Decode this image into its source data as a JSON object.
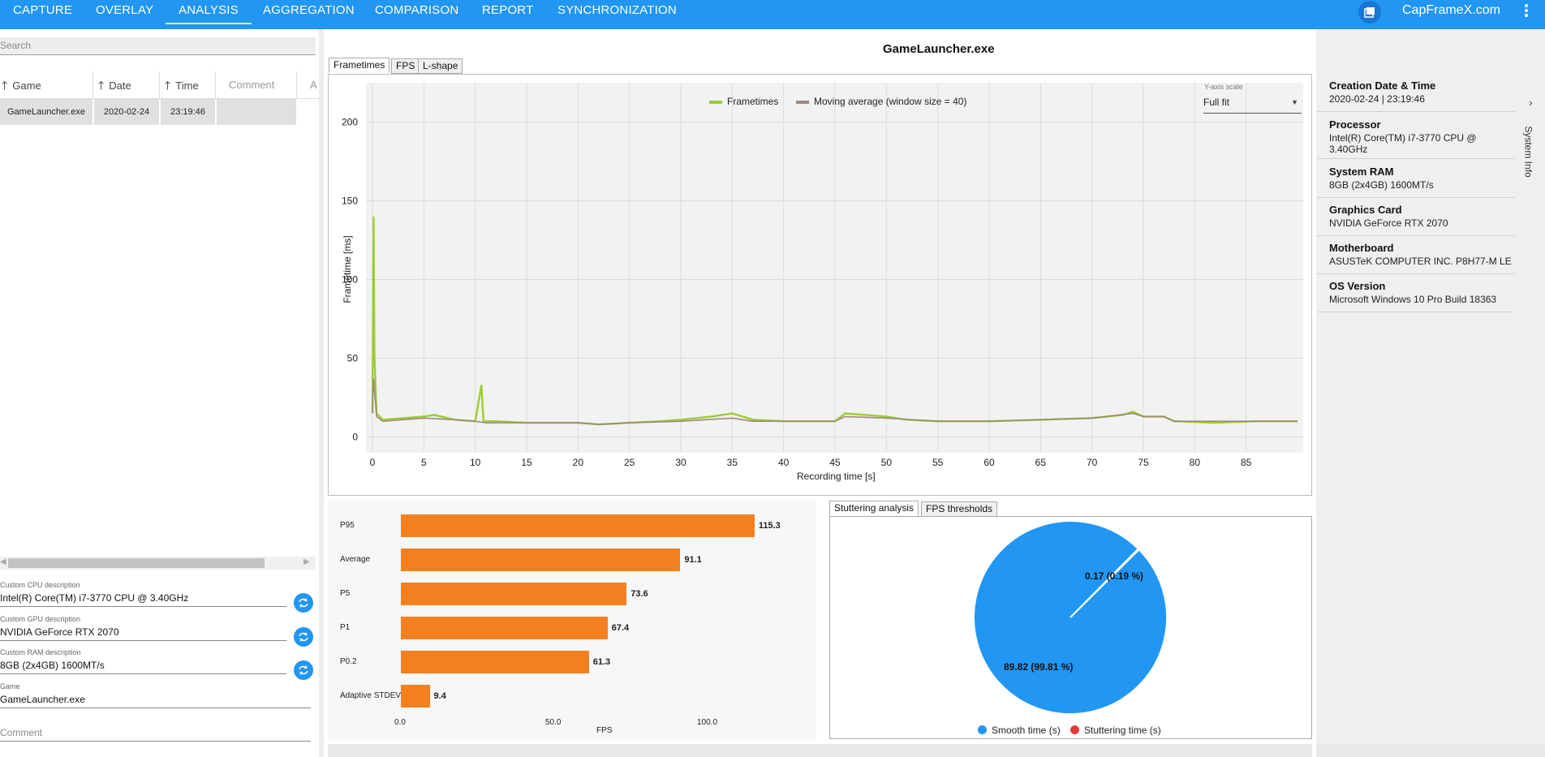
{
  "nav": {
    "tabs": [
      "CAPTURE",
      "OVERLAY",
      "ANALYSIS",
      "AGGREGATION",
      "COMPARISON",
      "REPORT",
      "SYNCHRONIZATION"
    ],
    "active": "ANALYSIS",
    "brand": "CapFrameX.com"
  },
  "sidebar": {
    "search_placeholder": "Search",
    "columns": [
      "Game",
      "Date",
      "Time",
      "Comment",
      "A"
    ],
    "rows": [
      {
        "game": "GameLauncher.exe",
        "date": "2020-02-24",
        "time": "23:19:46",
        "comment": ""
      }
    ],
    "custom_cpu_label": "Custom CPU description",
    "custom_cpu": "Intel(R) Core(TM) i7-3770 CPU @ 3.40GHz",
    "custom_gpu_label": "Custom GPU description",
    "custom_gpu": "NVIDIA GeForce RTX 2070",
    "custom_ram_label": "Custom RAM description",
    "custom_ram": "8GB (2x4GB) 1600MT/s",
    "game_label": "Game",
    "game": "GameLauncher.exe",
    "comment_placeholder": "Comment"
  },
  "main": {
    "title": "GameLauncher.exe",
    "chart_tabs": [
      "Frametimes",
      "FPS",
      "L-shape"
    ],
    "active_chart_tab": "Frametimes",
    "yaxis_scale_label": "Y-axis scale",
    "yaxis_scale_value": "Full fit",
    "stat_tabs": [
      "Stuttering analysis",
      "FPS thresholds"
    ],
    "active_stat_tab": "Stuttering analysis"
  },
  "chart_data": [
    {
      "type": "line",
      "title": "",
      "xlabel": "Recording time [s]",
      "ylabel": "Frametime [ms]",
      "xlim": [
        0,
        90
      ],
      "ylim": [
        -10,
        225
      ],
      "xticks": [
        0,
        5,
        10,
        15,
        20,
        25,
        30,
        35,
        40,
        45,
        50,
        55,
        60,
        65,
        70,
        75,
        80,
        85
      ],
      "yticks": [
        0,
        50,
        100,
        150,
        200
      ],
      "grid": true,
      "legend_position": "top",
      "series": [
        {
          "name": "Frametimes",
          "color": "#9acd32",
          "points": [
            [
              0,
              15
            ],
            [
              0.1,
              140
            ],
            [
              0.2,
              50
            ],
            [
              0.4,
              15
            ],
            [
              1,
              11
            ],
            [
              3,
              12
            ],
            [
              5,
              13
            ],
            [
              6,
              14
            ],
            [
              8,
              11
            ],
            [
              10,
              10
            ],
            [
              10.6,
              33
            ],
            [
              10.8,
              10
            ],
            [
              12,
              10
            ],
            [
              15,
              9
            ],
            [
              20,
              9
            ],
            [
              22,
              8
            ],
            [
              25,
              9
            ],
            [
              28,
              10
            ],
            [
              30,
              11
            ],
            [
              33,
              13
            ],
            [
              35,
              15
            ],
            [
              37,
              11
            ],
            [
              40,
              10
            ],
            [
              45,
              10
            ],
            [
              46,
              15
            ],
            [
              50,
              13
            ],
            [
              52,
              11
            ],
            [
              55,
              10
            ],
            [
              60,
              10
            ],
            [
              65,
              11
            ],
            [
              70,
              12
            ],
            [
              73,
              14
            ],
            [
              74,
              16
            ],
            [
              75,
              13
            ],
            [
              77,
              13
            ],
            [
              78,
              10
            ],
            [
              82,
              9
            ],
            [
              86,
              10
            ],
            [
              90,
              10
            ]
          ]
        },
        {
          "name": "Moving average (window size = 40)",
          "color": "#a1887f",
          "points": [
            [
              0,
              15
            ],
            [
              0.1,
              37
            ],
            [
              0.4,
              13
            ],
            [
              1,
              10
            ],
            [
              5,
              12
            ],
            [
              8,
              11
            ],
            [
              10,
              10
            ],
            [
              11,
              9
            ],
            [
              15,
              9
            ],
            [
              20,
              9
            ],
            [
              22,
              8
            ],
            [
              25,
              9
            ],
            [
              30,
              10
            ],
            [
              35,
              12
            ],
            [
              37,
              10
            ],
            [
              40,
              10
            ],
            [
              45,
              10
            ],
            [
              46,
              13
            ],
            [
              50,
              12
            ],
            [
              55,
              10
            ],
            [
              60,
              10
            ],
            [
              65,
              11
            ],
            [
              70,
              12
            ],
            [
              74,
              15
            ],
            [
              75,
              13
            ],
            [
              77,
              13
            ],
            [
              78,
              10
            ],
            [
              82,
              10
            ],
            [
              90,
              10
            ]
          ]
        }
      ]
    },
    {
      "type": "bar",
      "orientation": "horizontal",
      "xlabel": "FPS",
      "xlim": [
        0,
        125
      ],
      "xticks": [
        "0.0",
        "50.0",
        "100.0"
      ],
      "categories": [
        "P95",
        "Average",
        "P5",
        "P1",
        "P0.2",
        "Adaptive STDEV"
      ],
      "values": [
        115.3,
        91.1,
        73.6,
        67.4,
        61.3,
        9.4
      ],
      "color": "#f28020"
    },
    {
      "type": "pie",
      "labels": [
        "Smooth time (s)",
        "Stuttering time (s)"
      ],
      "values": [
        89.82,
        0.17
      ],
      "percent": [
        99.81,
        0.19
      ],
      "data_labels": [
        "89.82 (99.81 %)",
        "0.17 (0.19 %)"
      ],
      "colors": [
        "#2196f3",
        "#e53935"
      ],
      "legend_position": "bottom"
    }
  ],
  "system_info": {
    "tab_label": "System Info",
    "items": [
      {
        "heading": "Creation Date & Time",
        "value": "2020-02-24  |  23:19:46"
      },
      {
        "heading": "Processor",
        "value": "Intel(R) Core(TM) i7-3770 CPU @ 3.40GHz"
      },
      {
        "heading": "System RAM",
        "value": "8GB (2x4GB) 1600MT/s"
      },
      {
        "heading": "Graphics Card",
        "value": "NVIDIA GeForce RTX 2070"
      },
      {
        "heading": "Motherboard",
        "value": "ASUSTeK COMPUTER INC. P8H77-M LE"
      },
      {
        "heading": "OS Version",
        "value": "Microsoft Windows 10 Pro Build 18363"
      }
    ]
  }
}
